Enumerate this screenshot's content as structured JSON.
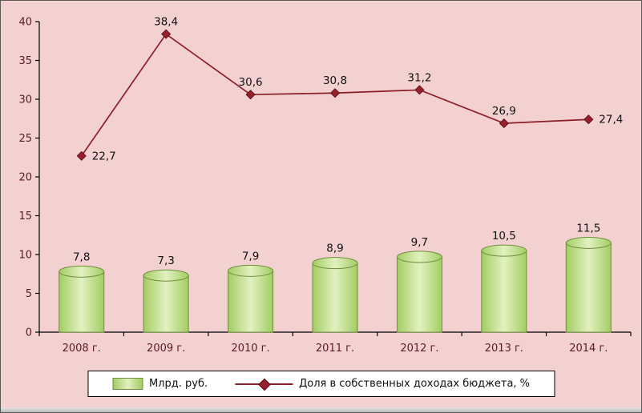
{
  "chart_data": {
    "type": "bar",
    "subtype": "combo-bar-line",
    "title": "",
    "xlabel": "",
    "ylabel": "",
    "categories": [
      "2008 г.",
      "2009 г.",
      "2010 г.",
      "2011 г.",
      "2012 г.",
      "2013 г.",
      "2014 г."
    ],
    "series": [
      {
        "name": "Млрд. руб.",
        "type": "bar",
        "values": [
          7.8,
          7.3,
          7.9,
          8.9,
          9.7,
          10.5,
          11.5
        ],
        "labels": [
          "7,8",
          "7,3",
          "7,9",
          "8,9",
          "9,7",
          "10,5",
          "11,5"
        ]
      },
      {
        "name": "Доля в собственных доходах бюджета, %",
        "type": "line",
        "values": [
          22.7,
          38.4,
          30.6,
          30.8,
          31.2,
          26.9,
          27.4
        ],
        "labels": [
          "22,7",
          "38,4",
          "30,6",
          "30,8",
          "31,2",
          "26,9",
          "27,4"
        ]
      }
    ],
    "ylim": [
      0,
      40
    ],
    "y_ticks": [
      "0",
      "5",
      "10",
      "15",
      "20",
      "25",
      "30",
      "35",
      "40"
    ],
    "grid": false,
    "legend_position": "bottom",
    "colors": {
      "background": "#f3d1d1",
      "bar_edge_fill": "#a3cd63",
      "bar_center_fill": "#e2f1c0",
      "bar_stroke": "#6e8f3c",
      "line": "#8b1e28",
      "marker_fill": "#9a1f2d",
      "marker_stroke": "#4d0f16",
      "axis": "#000000",
      "axis_text": "#5c1a1f",
      "data_label_text": "#111111"
    }
  },
  "legend": {
    "bar_label": "Млрд. руб.",
    "line_label": "Доля  в собственных доходах бюджета, %"
  }
}
